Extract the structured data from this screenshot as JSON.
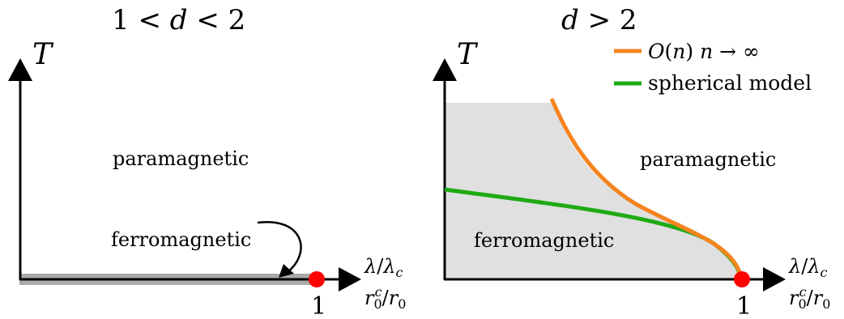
{
  "left_panel": {
    "title": "1 < d < 2",
    "t_axis_label": "T",
    "x_axis_label_top": "λ/λ_c",
    "x_axis_label_bottom": "r_0^c/r_0",
    "tick_one": "1",
    "paramagnetic_label": "paramagnetic",
    "ferromagnetic_label": "ferromagnetic"
  },
  "right_panel": {
    "title": "d > 2",
    "t_axis_label": "T",
    "x_axis_label_top": "λ/λ_c",
    "x_axis_label_bottom": "r_0^c/r_0",
    "tick_one": "1",
    "paramagnetic_label": "paramagnetic",
    "ferromagnetic_label": "ferromagnetic",
    "legend": [
      {
        "label": "O(n) n → ∞",
        "color": "#f5841f"
      },
      {
        "label": "spherical model",
        "color": "#1faa14"
      }
    ]
  },
  "colors": {
    "ferromagnetic_fill": "#e0e0e0",
    "critical_point": "#ff0000",
    "left_strip": "#aaaaaa"
  }
}
